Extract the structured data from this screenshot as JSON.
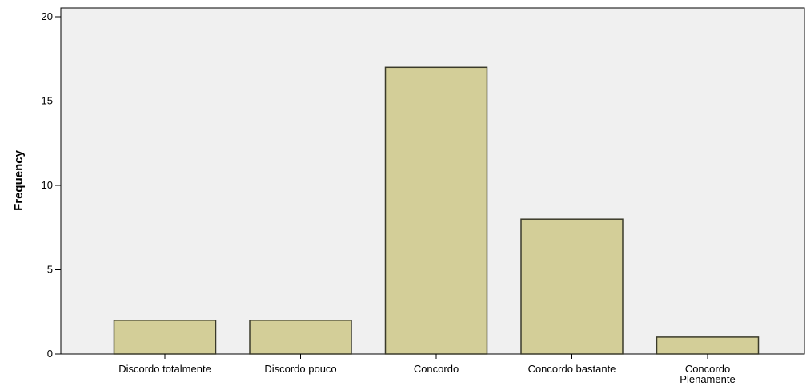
{
  "chart_data": {
    "type": "bar",
    "title": "",
    "xlabel": "",
    "ylabel": "Frequency",
    "ylim": [
      0,
      20
    ],
    "yticks": [
      0,
      5,
      10,
      15,
      20
    ],
    "categories": [
      [
        "Discordo totalmente"
      ],
      [
        "Discordo pouco"
      ],
      [
        "Concordo"
      ],
      [
        "Concordo bastante"
      ],
      [
        "Concordo",
        "Plenamente"
      ]
    ],
    "values": [
      2,
      2,
      17,
      8,
      1
    ],
    "grid": false,
    "legend": "none",
    "colors": {
      "plot_background": "#f0f0f0",
      "bar_fill": "#d3ce98",
      "bar_stroke": "#3a3a2a",
      "axis": "#000000"
    }
  }
}
